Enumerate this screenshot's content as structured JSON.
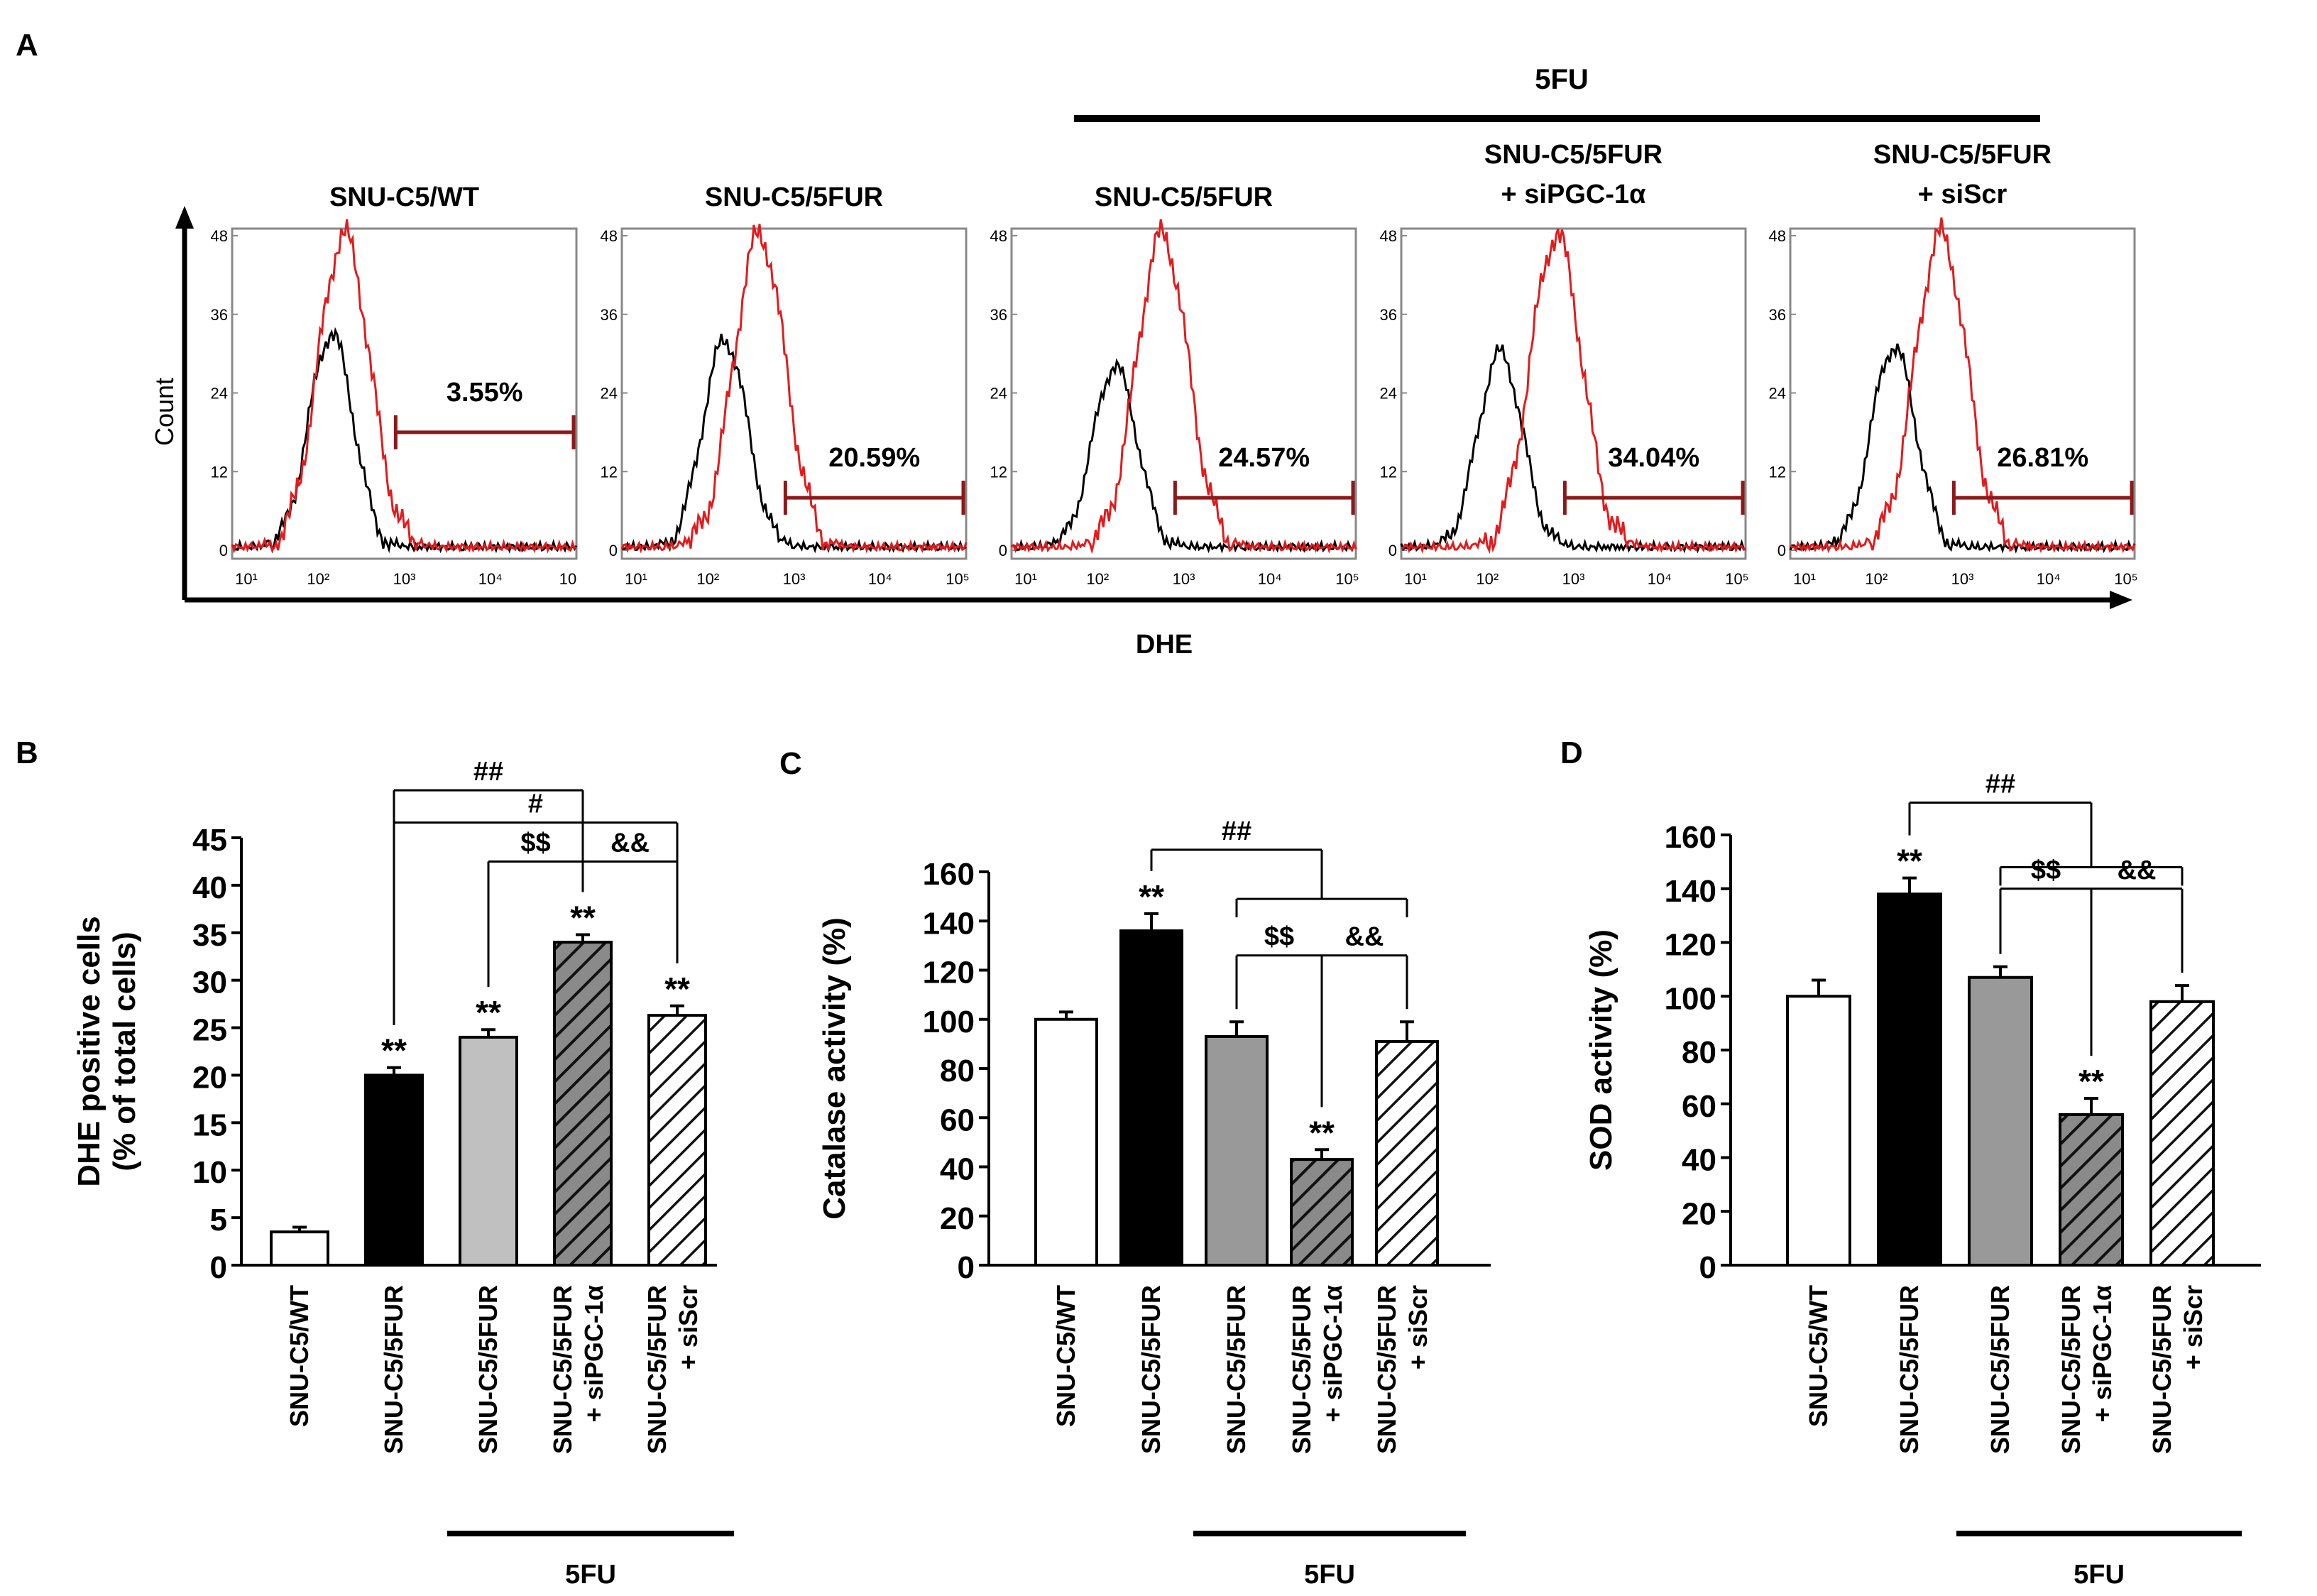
{
  "figure": {
    "panel_labels": [
      "A",
      "B",
      "C",
      "D"
    ],
    "treatment_label": "5FU",
    "groups": [
      "SNU-C5/WT",
      "SNU-C5/5FUR",
      "SNU-C5/5FUR",
      "SNU-C5/5FUR\n+ siPGC-1α",
      "SNU-C5/5FUR\n+ siScr"
    ],
    "panel_a_titles": [
      "SNU-C5/WT",
      "SNU-C5/5FUR",
      "SNU-C5/5FUR",
      "SNU-C5/5FUR\n+ siPGC-1α",
      "SNU-C5/5FUR\n+ siScr"
    ]
  },
  "colors": {
    "control_trace": "#000000",
    "dhe_trace": "#e41a1c",
    "gate": "#8b1a1a",
    "bar_wt": "#ffffff",
    "bar_5fur": "#000000",
    "bar_5fur_5fu": "#999999",
    "bar_sipgc": "#555555",
    "bar_siscr": "#ffffff"
  },
  "chart_data": [
    {
      "panel": "A",
      "type": "histogram",
      "xlabel": "DHE",
      "ylabel": "Count",
      "yticks": [
        "0",
        "12",
        "24",
        "36",
        "48"
      ],
      "ylim": [
        0,
        48
      ],
      "xticks": [
        "10¹",
        "10²",
        "10³",
        "10⁴",
        "10⁵"
      ],
      "xticks_first_panel": [
        "10¹",
        "10²",
        "10³",
        "10⁴",
        "10"
      ],
      "xlim_log10": [
        1,
        5
      ],
      "gate_start_log10": 2.9,
      "subplots": [
        {
          "title": "SNU-C5/WT",
          "gate_percent": "3.55%",
          "gate_level": 18,
          "control_peak_log10": 2.15,
          "control_peak": 33,
          "stained_peak_log10": 2.3,
          "stained_peak": 48
        },
        {
          "title": "SNU-C5/5FUR",
          "gate_percent": "20.59%",
          "gate_level": 8,
          "control_peak_log10": 2.2,
          "control_peak": 32,
          "stained_peak_log10": 2.6,
          "stained_peak": 48
        },
        {
          "title": "SNU-C5/5FUR",
          "gate_percent": "24.57%",
          "gate_level": 8,
          "control_peak_log10": 2.2,
          "control_peak": 28,
          "stained_peak_log10": 2.75,
          "stained_peak": 48
        },
        {
          "title": "SNU-C5/5FUR + siPGC-1α",
          "gate_percent": "34.04%",
          "gate_level": 8,
          "control_peak_log10": 2.15,
          "control_peak": 30,
          "stained_peak_log10": 2.8,
          "stained_peak": 48
        },
        {
          "title": "SNU-C5/5FUR + siScr",
          "gate_percent": "26.81%",
          "gate_level": 8,
          "control_peak_log10": 2.2,
          "control_peak": 31,
          "stained_peak_log10": 2.75,
          "stained_peak": 48
        }
      ]
    },
    {
      "panel": "B",
      "type": "bar",
      "ylabel": "DHE positive cells\n(% of total cells)",
      "ylim": [
        0,
        45
      ],
      "yticks": [
        0,
        5,
        10,
        15,
        20,
        25,
        30,
        35,
        40,
        45
      ],
      "categories": [
        "SNU-C5/WT",
        "SNU-C5/5FUR",
        "SNU-C5/5FUR",
        "SNU-C5/5FUR\n+ siPGC-1α",
        "SNU-C5/5FUR\n+ siScr"
      ],
      "values": [
        3.5,
        20,
        24,
        34,
        26.3
      ],
      "errors": [
        0.5,
        0.8,
        0.8,
        0.8,
        1.0
      ],
      "annotations": [
        "",
        "**",
        "**",
        "**",
        "**"
      ],
      "brackets": [
        {
          "label": "##",
          "from": [
            1
          ],
          "to": [
            3
          ],
          "height": 50
        },
        {
          "label": "#",
          "from": [
            1
          ],
          "to": [
            4
          ],
          "height": 46.6
        },
        {
          "label": "$$",
          "from": [
            2
          ],
          "to": [
            3
          ],
          "height": 42.5
        },
        {
          "label": "&&",
          "from": [
            3
          ],
          "to": [
            4
          ],
          "height": 42.5
        }
      ]
    },
    {
      "panel": "C",
      "type": "bar",
      "ylabel": "Catalase activity (%)",
      "ylim": [
        0,
        160
      ],
      "yticks": [
        0,
        20,
        40,
        60,
        80,
        100,
        120,
        140,
        160
      ],
      "categories": [
        "SNU-C5/WT",
        "SNU-C5/5FUR",
        "SNU-C5/5FUR",
        "SNU-C5/5FUR\n+ siPGC-1α",
        "SNU-C5/5FUR\n+ siScr"
      ],
      "values": [
        100,
        136,
        93,
        43,
        91
      ],
      "errors": [
        3,
        7,
        6,
        4,
        8
      ],
      "annotations": [
        "",
        "**",
        "",
        "**",
        ""
      ],
      "brackets": [
        {
          "label": "##",
          "from": [
            1
          ],
          "to": [
            2,
            3,
            4
          ],
          "height": 169
        },
        {
          "label": "$$",
          "from": [
            2
          ],
          "to": [
            3
          ],
          "height": 126
        },
        {
          "label": "&&",
          "from": [
            3
          ],
          "to": [
            4
          ],
          "height": 126
        }
      ]
    },
    {
      "panel": "D",
      "type": "bar",
      "ylabel": "SOD activity (%)",
      "ylim": [
        0,
        160
      ],
      "yticks": [
        0,
        20,
        40,
        60,
        80,
        100,
        120,
        140,
        160
      ],
      "categories": [
        "SNU-C5/WT",
        "SNU-C5/5FUR",
        "SNU-C5/5FUR",
        "SNU-C5/5FUR\n+ siPGC-1α",
        "SNU-C5/5FUR\n+ siScr"
      ],
      "values": [
        100,
        138,
        107,
        56,
        98
      ],
      "errors": [
        6,
        6,
        4,
        6,
        6
      ],
      "annotations": [
        "",
        "**",
        "",
        "**",
        ""
      ],
      "brackets": [
        {
          "label": "##",
          "from": [
            1
          ],
          "to": [
            2,
            3,
            4
          ],
          "height": 172
        },
        {
          "label": "$$",
          "from": [
            2
          ],
          "to": [
            3
          ],
          "height": 140
        },
        {
          "label": "&&",
          "from": [
            3
          ],
          "to": [
            4
          ],
          "height": 140
        }
      ]
    }
  ]
}
